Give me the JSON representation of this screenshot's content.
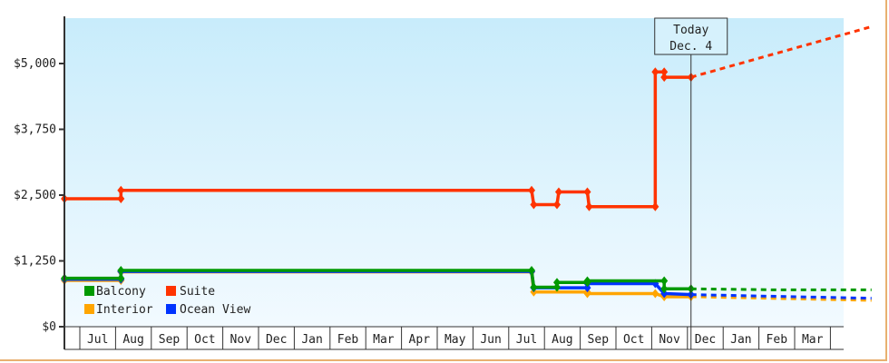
{
  "chart_data": {
    "type": "line",
    "title": "",
    "xlabel": "",
    "ylabel": "",
    "ylim": [
      0,
      5900
    ],
    "y_ticks": [
      "$0",
      "$1,250",
      "$2,500",
      "$3,750",
      "$5,000"
    ],
    "y_tick_values": [
      0,
      1250,
      2500,
      3750,
      5000
    ],
    "x_tick_labels": [
      "Jul",
      "Aug",
      "Sep",
      "Oct",
      "Nov",
      "Dec",
      "Jan",
      "Feb",
      "Mar",
      "Apr",
      "May",
      "Jun",
      "Jul",
      "Aug",
      "Sep",
      "Oct",
      "Nov",
      "Dec",
      "Jan",
      "Feb",
      "Mar"
    ],
    "x_units": "months since first Jul label start",
    "xlim": [
      -0.43,
      22.15
    ],
    "grid": false,
    "legend_position": "bottom-left",
    "today_marker": {
      "label_line1": "Today",
      "label_line2": "Dec. 4",
      "x": 17.1
    },
    "series": [
      {
        "name": "Balcony",
        "color": "#009900",
        "points": [
          [
            -0.43,
            920
          ],
          [
            1.15,
            920
          ],
          [
            1.15,
            1070
          ],
          [
            12.64,
            1070
          ],
          [
            12.7,
            750
          ],
          [
            13.35,
            750
          ],
          [
            13.35,
            840
          ],
          [
            14.2,
            840
          ],
          [
            14.2,
            870
          ],
          [
            16.35,
            870
          ],
          [
            16.35,
            720
          ],
          [
            17.1,
            720
          ]
        ],
        "projection": [
          [
            17.1,
            720
          ],
          [
            19.5,
            700
          ],
          [
            22.15,
            700
          ]
        ]
      },
      {
        "name": "Suite",
        "color": "#ff3300",
        "points": [
          [
            -0.43,
            2430
          ],
          [
            1.15,
            2430
          ],
          [
            1.15,
            2590
          ],
          [
            12.64,
            2590
          ],
          [
            12.7,
            2320
          ],
          [
            13.35,
            2320
          ],
          [
            13.4,
            2560
          ],
          [
            14.2,
            2560
          ],
          [
            14.25,
            2280
          ],
          [
            16.1,
            2280
          ],
          [
            16.1,
            4840
          ],
          [
            16.35,
            4840
          ],
          [
            16.35,
            4740
          ],
          [
            17.1,
            4740
          ]
        ],
        "projection": [
          [
            17.1,
            4740
          ],
          [
            22.15,
            5700
          ]
        ]
      },
      {
        "name": "Interior",
        "color": "#ffa500",
        "points": [
          [
            -0.43,
            880
          ],
          [
            1.15,
            880
          ],
          [
            1.15,
            1040
          ],
          [
            12.64,
            1040
          ],
          [
            12.7,
            660
          ],
          [
            14.2,
            660
          ],
          [
            14.2,
            630
          ],
          [
            16.1,
            630
          ],
          [
            16.35,
            570
          ],
          [
            17.1,
            570
          ]
        ],
        "projection": [
          [
            17.1,
            570
          ],
          [
            22.15,
            500
          ]
        ]
      },
      {
        "name": "Ocean View",
        "color": "#0033ff",
        "points": [
          [
            -0.43,
            900
          ],
          [
            1.15,
            900
          ],
          [
            1.15,
            1050
          ],
          [
            12.64,
            1050
          ],
          [
            12.7,
            740
          ],
          [
            14.2,
            740
          ],
          [
            14.2,
            820
          ],
          [
            16.1,
            820
          ],
          [
            16.35,
            630
          ],
          [
            17.1,
            610
          ]
        ],
        "projection": [
          [
            17.1,
            610
          ],
          [
            22.15,
            540
          ]
        ]
      }
    ]
  }
}
